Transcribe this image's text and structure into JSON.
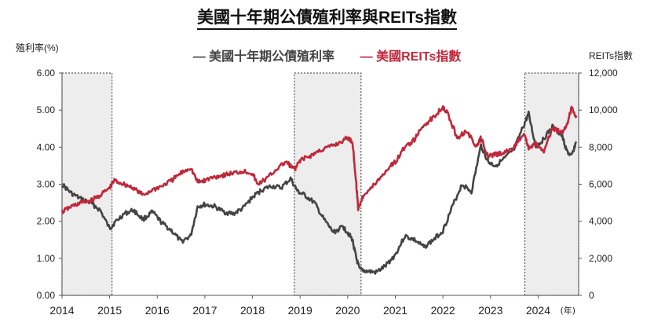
{
  "chart_data": {
    "type": "line",
    "title": "美國十年期公債殖利率與REITs指數",
    "ylabel": "殖利率(%)",
    "y2label": "REITs指數",
    "xunit": "(年)",
    "xlim": [
      2014.0,
      2024.85
    ],
    "ylim": [
      0,
      6
    ],
    "y2lim": [
      0,
      12000
    ],
    "x_ticks": [
      "2014",
      "2015",
      "2016",
      "2017",
      "2018",
      "2019",
      "2020",
      "2021",
      "2022",
      "2023",
      "2024"
    ],
    "y_ticks": [
      "0.00",
      "1.00",
      "2.00",
      "3.00",
      "4.00",
      "5.00",
      "6.00"
    ],
    "y2_ticks": [
      "0",
      "2,000",
      "4,000",
      "6,000",
      "8,000",
      "10,000",
      "12,000"
    ],
    "shaded_periods": [
      [
        2014.0,
        2015.05
      ],
      [
        2018.88,
        2020.28
      ],
      [
        2023.72,
        2024.85
      ]
    ],
    "series": [
      {
        "name": "美國十年期公債殖利率",
        "axis": "left",
        "color": "#444444",
        "x": [
          2014.0,
          2014.2,
          2014.4,
          2014.6,
          2014.8,
          2015.0,
          2015.1,
          2015.3,
          2015.5,
          2015.7,
          2015.9,
          2016.1,
          2016.3,
          2016.5,
          2016.7,
          2016.85,
          2017.0,
          2017.2,
          2017.4,
          2017.6,
          2017.8,
          2018.0,
          2018.2,
          2018.4,
          2018.6,
          2018.8,
          2018.95,
          2019.1,
          2019.3,
          2019.5,
          2019.7,
          2019.9,
          2020.0,
          2020.1,
          2020.18,
          2020.25,
          2020.4,
          2020.6,
          2020.8,
          2021.0,
          2021.2,
          2021.4,
          2021.6,
          2021.8,
          2022.0,
          2022.2,
          2022.4,
          2022.6,
          2022.8,
          2022.95,
          2023.1,
          2023.3,
          2023.5,
          2023.7,
          2023.8,
          2023.95,
          2024.1,
          2024.3,
          2024.5,
          2024.6,
          2024.7,
          2024.8
        ],
        "values": [
          3.0,
          2.75,
          2.6,
          2.5,
          2.3,
          1.8,
          1.95,
          2.2,
          2.3,
          2.05,
          2.25,
          1.95,
          1.75,
          1.45,
          1.6,
          2.4,
          2.45,
          2.4,
          2.25,
          2.2,
          2.35,
          2.65,
          2.85,
          2.95,
          2.9,
          3.15,
          2.8,
          2.7,
          2.5,
          2.05,
          1.7,
          1.85,
          1.7,
          1.5,
          1.0,
          0.7,
          0.65,
          0.62,
          0.8,
          1.1,
          1.6,
          1.5,
          1.3,
          1.5,
          1.75,
          2.4,
          3.0,
          2.8,
          4.05,
          3.6,
          3.5,
          3.7,
          3.95,
          4.6,
          4.9,
          4.0,
          4.2,
          4.55,
          4.3,
          3.9,
          3.75,
          4.15
        ]
      },
      {
        "name": "美國REITs指數",
        "axis": "right",
        "color": "#c0283a",
        "x": [
          2014.0,
          2014.2,
          2014.4,
          2014.6,
          2014.8,
          2015.0,
          2015.1,
          2015.3,
          2015.5,
          2015.7,
          2015.9,
          2016.1,
          2016.3,
          2016.5,
          2016.7,
          2016.85,
          2017.0,
          2017.2,
          2017.4,
          2017.6,
          2017.8,
          2018.0,
          2018.1,
          2018.3,
          2018.5,
          2018.7,
          2018.9,
          2019.0,
          2019.2,
          2019.4,
          2019.6,
          2019.8,
          2020.0,
          2020.1,
          2020.18,
          2020.22,
          2020.35,
          2020.5,
          2020.7,
          2020.9,
          2021.0,
          2021.2,
          2021.4,
          2021.6,
          2021.8,
          2022.0,
          2022.1,
          2022.3,
          2022.5,
          2022.7,
          2022.8,
          2022.95,
          2023.1,
          2023.3,
          2023.5,
          2023.7,
          2023.8,
          2023.95,
          2024.1,
          2024.3,
          2024.5,
          2024.6,
          2024.7,
          2024.8
        ],
        "values": [
          4500,
          4800,
          5000,
          5100,
          5400,
          5800,
          6200,
          6000,
          5800,
          5400,
          5700,
          5900,
          6200,
          6600,
          6900,
          6100,
          6200,
          6400,
          6500,
          6600,
          6700,
          6600,
          6000,
          6300,
          6800,
          7200,
          6800,
          7300,
          7500,
          7800,
          8000,
          8200,
          8500,
          8300,
          6000,
          4700,
          5500,
          5800,
          6400,
          7000,
          7200,
          8000,
          8400,
          9200,
          9600,
          10200,
          9800,
          8500,
          8900,
          8000,
          8500,
          7500,
          7600,
          7700,
          8000,
          8800,
          7900,
          8200,
          7700,
          9000,
          8800,
          9200,
          10100,
          9700
        ]
      }
    ]
  }
}
